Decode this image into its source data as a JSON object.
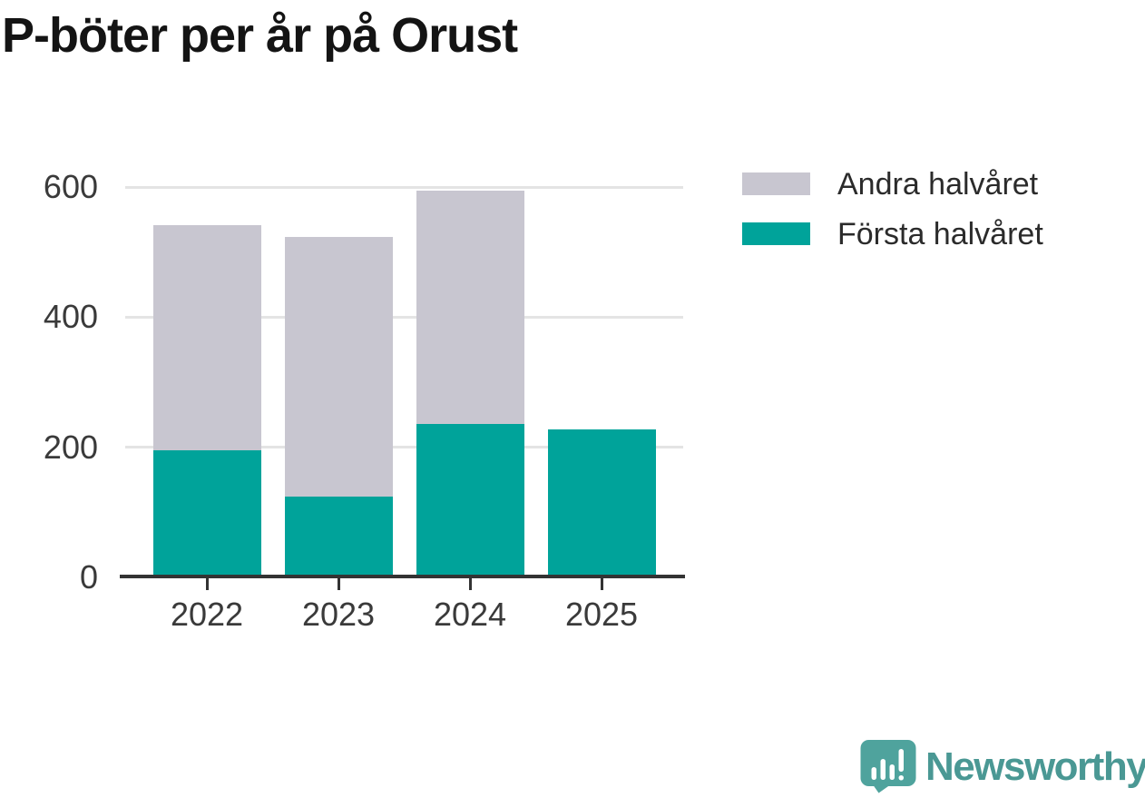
{
  "title": "P-böter per år på Orust",
  "chart_data": {
    "type": "bar",
    "stacked": true,
    "title": "P-böter per år på Orust",
    "categories": [
      "2022",
      "2023",
      "2024",
      "2025"
    ],
    "series": [
      {
        "name": "Första halvåret",
        "key": "forsta-halvaret",
        "color": "#00a39a",
        "values": [
          195,
          124,
          236,
          228
        ]
      },
      {
        "name": "Andra halvåret",
        "key": "andra-halvaret",
        "color": "#c8c6d0",
        "values": [
          347,
          399,
          358,
          0
        ]
      }
    ],
    "totals": [
      542,
      523,
      594,
      228
    ],
    "xlabel": "",
    "ylabel": "",
    "ylim": [
      0,
      600
    ],
    "yticks": [
      0,
      200,
      400,
      600
    ],
    "grid": true,
    "legend_position": "top-right",
    "legend_order": [
      "Andra halvåret",
      "Första halvåret"
    ]
  },
  "legend": {
    "items": [
      {
        "label": "Andra halvåret",
        "color": "#c8c6d0"
      },
      {
        "label": "Första halvåret",
        "color": "#00a39a"
      }
    ]
  },
  "branding": {
    "logo_text": "Newsworthy",
    "icon": "newsworthy-logo-icon",
    "icon_color": "#4fa39d",
    "text_color": "#4a9894"
  },
  "colors": {
    "axis": "#333333",
    "gridline": "#e4e4e4",
    "tick_label": "#3a3a3a",
    "title": "#141414"
  }
}
